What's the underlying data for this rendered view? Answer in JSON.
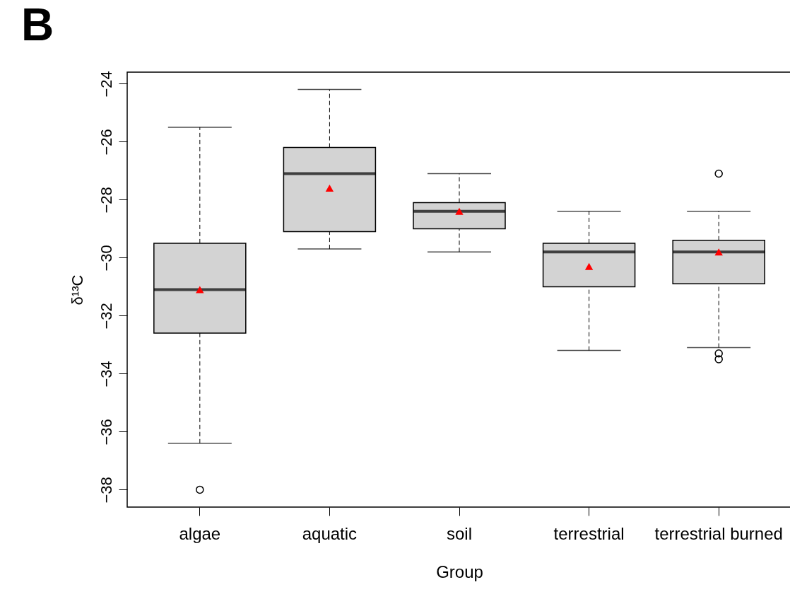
{
  "chart_data": {
    "type": "box",
    "title": "B",
    "xlabel": "Group",
    "ylabel": "δ¹³C",
    "categories": [
      "algae",
      "aquatic",
      "soil",
      "terrestrial",
      "terrestrial burned"
    ],
    "boxes": [
      {
        "low": -36.4,
        "q1": -32.6,
        "median": -31.1,
        "q3": -29.5,
        "high": -25.5,
        "mean": -31.1,
        "outliers": [
          -38.0
        ]
      },
      {
        "low": -29.7,
        "q1": -29.1,
        "median": -27.1,
        "q3": -26.2,
        "high": -24.2,
        "mean": -27.6
      },
      {
        "low": -29.8,
        "q1": -29.0,
        "median": -28.4,
        "q3": -28.1,
        "high": -27.1,
        "mean": -28.4
      },
      {
        "low": -33.2,
        "q1": -31.0,
        "median": -29.8,
        "q3": -29.5,
        "high": -28.4,
        "mean": -30.3
      },
      {
        "low": -33.1,
        "q1": -30.9,
        "median": -29.8,
        "q3": -29.4,
        "high": -28.4,
        "mean": -29.8,
        "outliers": [
          -27.1,
          -33.3,
          -33.5
        ]
      }
    ],
    "ylim": [
      -38.6,
      -23.6
    ],
    "yticks": [
      -38,
      -36,
      -34,
      -32,
      -30,
      -28,
      -26,
      -24
    ],
    "grid": false
  }
}
